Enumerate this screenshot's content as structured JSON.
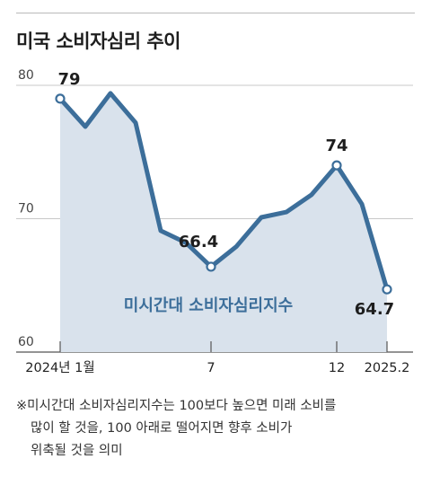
{
  "title": "미국 소비자심리 추이",
  "chart_data": {
    "type": "area",
    "series_label": "미시간대 소비자심리지수",
    "ylim": [
      60,
      80
    ],
    "y_ticks": [
      "60",
      "70",
      "80"
    ],
    "x_tick_labels": [
      {
        "index": 0,
        "label": "2024년 1월"
      },
      {
        "index": 6,
        "label": "7"
      },
      {
        "index": 11,
        "label": "12"
      },
      {
        "index": 13,
        "label": "2025.2"
      }
    ],
    "values": [
      79.0,
      76.9,
      79.4,
      77.2,
      69.1,
      68.2,
      66.4,
      67.9,
      70.1,
      70.5,
      71.8,
      74.0,
      71.1,
      64.7
    ],
    "labeled_points": [
      {
        "index": 0,
        "label": "79"
      },
      {
        "index": 6,
        "label": "66.4"
      },
      {
        "index": 11,
        "label": "74"
      },
      {
        "index": 13,
        "label": "64.7"
      }
    ],
    "grid": true,
    "colors": {
      "line": "#3c6e9a",
      "fill": "#d9e2ec",
      "grid": "#c8c8c8",
      "series_label": "#3c6e9a"
    }
  },
  "footnote": [
    "※미시간대 소비자심리지수는 100보다 높으면 미래 소비를",
    "많이 할 것을, 100 아래로 떨어지면 향후 소비가",
    "위축될 것을 의미"
  ]
}
